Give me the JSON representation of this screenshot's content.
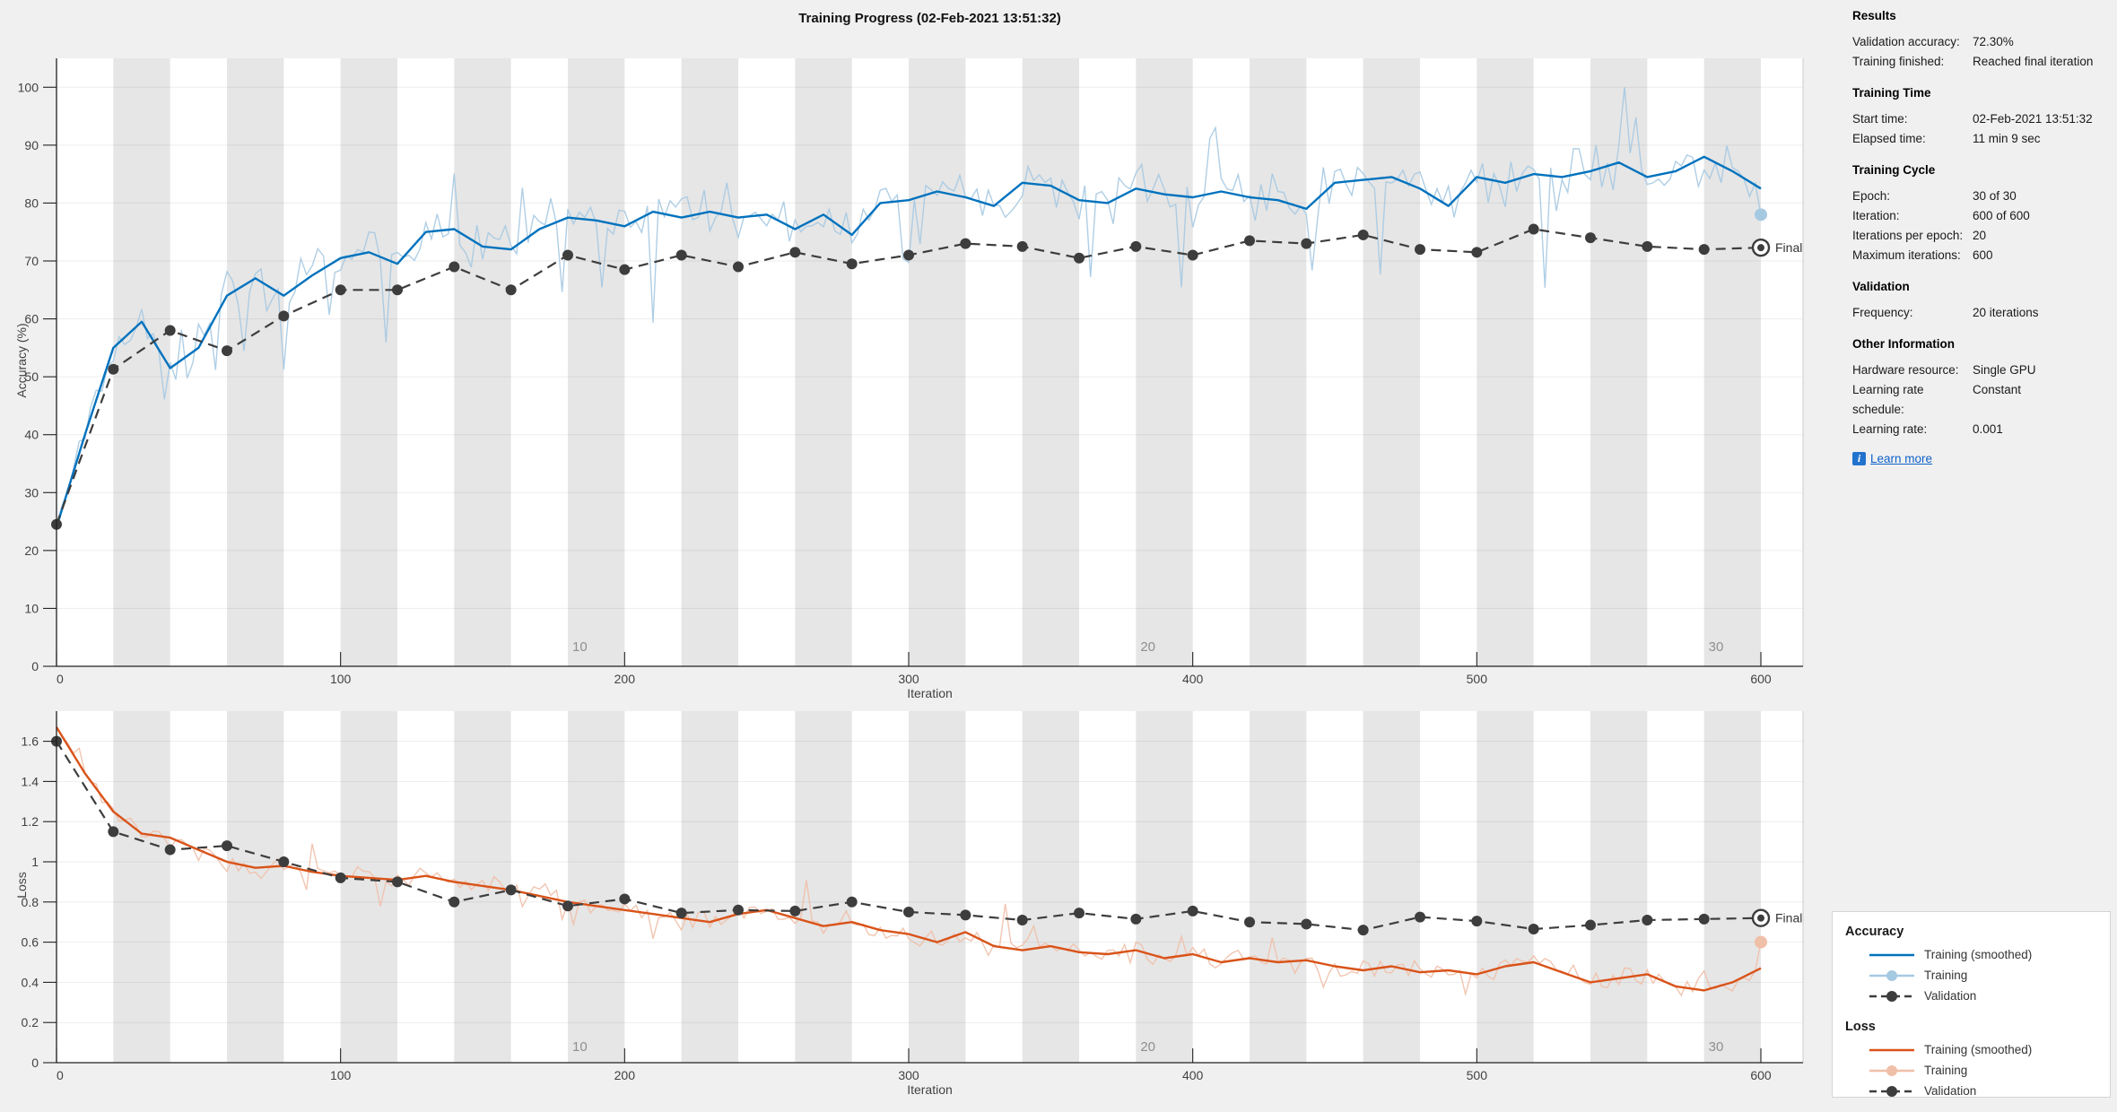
{
  "title": "Training Progress (02-Feb-2021 13:51:32)",
  "colors": {
    "figure_bg": "#f0f0f0",
    "plot_bg": "#ffffff",
    "epoch_band": "#e6e6e6",
    "grid": "rgba(0,0,0,0.07)",
    "axis": "#212121",
    "tick_text": "#424242",
    "epoch_label_text": "#8f8f8f",
    "accuracy_smoothed": "#0072BD",
    "accuracy_raw": "#a6c9e2",
    "loss_smoothed": "#D95319",
    "loss_raw": "#f0bfa8",
    "validation": "#3d3d3d",
    "final_text": "#333333",
    "link": "#0d62c9"
  },
  "panel": {
    "sections": [
      {
        "header": "Results",
        "items": [
          {
            "label": "Validation accuracy:",
            "value": "72.30%"
          },
          {
            "label": "Training finished:",
            "value": "Reached final iteration"
          }
        ]
      },
      {
        "header": "Training Time",
        "items": [
          {
            "label": "Start time:",
            "value": "02-Feb-2021 13:51:32"
          },
          {
            "label": "Elapsed time:",
            "value": "11 min 9 sec"
          }
        ]
      },
      {
        "header": "Training Cycle",
        "items": [
          {
            "label": "Epoch:",
            "value": "30 of 30"
          },
          {
            "label": "Iteration:",
            "value": "600 of 600"
          },
          {
            "label": "Iterations per epoch:",
            "value": "20"
          },
          {
            "label": "Maximum iterations:",
            "value": "600"
          }
        ]
      },
      {
        "header": "Validation",
        "items": [
          {
            "label": "Frequency:",
            "value": "20 iterations"
          }
        ]
      },
      {
        "header": "Other Information",
        "items": [
          {
            "label": "Hardware resource:",
            "value": "Single GPU"
          },
          {
            "label": "Learning rate schedule:",
            "value": "Constant"
          },
          {
            "label": "Learning rate:",
            "value": "0.001"
          }
        ]
      }
    ],
    "learn_more": "Learn more"
  },
  "legend": {
    "groups": [
      {
        "title": "Accuracy",
        "entries": [
          {
            "label": "Training (smoothed)",
            "swatch": "solid-blue"
          },
          {
            "label": "Training",
            "swatch": "raw-blue"
          },
          {
            "label": "Validation",
            "swatch": "dashed-dark"
          }
        ]
      },
      {
        "title": "Loss",
        "entries": [
          {
            "label": "Training (smoothed)",
            "swatch": "solid-orange"
          },
          {
            "label": "Training",
            "swatch": "raw-orange"
          },
          {
            "label": "Validation",
            "swatch": "dashed-dark"
          }
        ]
      }
    ]
  },
  "chart_data": [
    {
      "type": "line",
      "name": "accuracy",
      "ylabel": "Accuracy (%)",
      "xlabel": "Iteration",
      "xlim": [
        0,
        615
      ],
      "ylim": [
        0,
        105
      ],
      "xticks": [
        0,
        100,
        200,
        300,
        400,
        500,
        600
      ],
      "xtick_labels": [
        "0",
        "100",
        "200",
        "300",
        "400",
        "500",
        "600"
      ],
      "yticks": [
        0,
        10,
        20,
        30,
        40,
        50,
        60,
        70,
        80,
        90,
        100
      ],
      "ytick_labels": [
        "0",
        "10",
        "20",
        "30",
        "40",
        "50",
        "60",
        "70",
        "80",
        "90",
        "100"
      ],
      "grid": "horizontal",
      "epoch_bands": {
        "iterations_per_epoch": 20,
        "num_epochs": 30,
        "shaded": "even",
        "labels": [
          {
            "epoch": 10,
            "text": "10"
          },
          {
            "epoch": 20,
            "text": "20"
          },
          {
            "epoch": 30,
            "text": "30"
          }
        ]
      },
      "series": [
        {
          "name": "Training (smoothed)",
          "style": "solid",
          "color_key": "accuracy_smoothed",
          "x_start": 0,
          "x_step": 10,
          "values": [
            24,
            40,
            55,
            59.5,
            51.5,
            55,
            64,
            67,
            64,
            67.5,
            70.5,
            71.5,
            69.5,
            75,
            75.5,
            72.5,
            72,
            75.5,
            77.5,
            77,
            76,
            78.5,
            77.5,
            78.5,
            77.5,
            78,
            75.5,
            78,
            74.5,
            80,
            80.5,
            82,
            81,
            79.5,
            83.5,
            83,
            80.5,
            80,
            82.5,
            81.5,
            81,
            82,
            81,
            80.5,
            79,
            83.5,
            84,
            84.5,
            82.5,
            79.5,
            84.5,
            83.5,
            85,
            84.5,
            85.5,
            87,
            84.5,
            85.5,
            88,
            85.5,
            82.5
          ]
        },
        {
          "name": "Training",
          "style": "raw-noisy",
          "color_key": "accuracy_raw",
          "base": "Training (smoothed)",
          "x_step": 2,
          "noise_amp": 5.5,
          "noise_seed": 12345,
          "spike_dir": -1,
          "end_value": 78,
          "end_marker": true
        },
        {
          "name": "Validation",
          "style": "dashed-markers",
          "color_key": "validation",
          "x_start": 0,
          "x_step": 20,
          "values": [
            24.5,
            51.3,
            58,
            54.5,
            60.5,
            65,
            65,
            69,
            65,
            71,
            68.5,
            71,
            69,
            71.5,
            69.5,
            71,
            73,
            72.5,
            70.5,
            72.5,
            71,
            73.5,
            73,
            74.5,
            72,
            71.5,
            75.5,
            74,
            72.5,
            72,
            72.3
          ],
          "final_label": "Final",
          "final_value": 72.3
        }
      ]
    },
    {
      "type": "line",
      "name": "loss",
      "ylabel": "Loss",
      "xlabel": "Iteration",
      "xlim": [
        0,
        615
      ],
      "ylim": [
        0,
        1.75
      ],
      "xticks": [
        0,
        100,
        200,
        300,
        400,
        500,
        600
      ],
      "xtick_labels": [
        "0",
        "100",
        "200",
        "300",
        "400",
        "500",
        "600"
      ],
      "yticks": [
        0,
        0.2,
        0.4,
        0.6,
        0.8,
        1,
        1.2,
        1.4,
        1.6
      ],
      "ytick_labels": [
        "0",
        "0.2",
        "0.4",
        "0.6",
        "0.8",
        "1",
        "1.2",
        "1.4",
        "1.6"
      ],
      "grid": "horizontal",
      "epoch_bands": {
        "iterations_per_epoch": 20,
        "num_epochs": 30,
        "shaded": "even",
        "labels": [
          {
            "epoch": 10,
            "text": "10"
          },
          {
            "epoch": 20,
            "text": "20"
          },
          {
            "epoch": 30,
            "text": "30"
          }
        ]
      },
      "series": [
        {
          "name": "Training (smoothed)",
          "style": "solid",
          "color_key": "loss_smoothed",
          "x_start": 0,
          "x_step": 10,
          "values": [
            1.67,
            1.44,
            1.25,
            1.14,
            1.12,
            1.06,
            1.0,
            0.97,
            0.98,
            0.95,
            0.93,
            0.92,
            0.91,
            0.93,
            0.9,
            0.88,
            0.86,
            0.83,
            0.8,
            0.78,
            0.76,
            0.74,
            0.72,
            0.7,
            0.74,
            0.76,
            0.72,
            0.68,
            0.7,
            0.66,
            0.64,
            0.6,
            0.65,
            0.58,
            0.56,
            0.58,
            0.55,
            0.54,
            0.56,
            0.52,
            0.54,
            0.5,
            0.52,
            0.5,
            0.51,
            0.48,
            0.46,
            0.48,
            0.45,
            0.46,
            0.44,
            0.48,
            0.5,
            0.45,
            0.4,
            0.42,
            0.44,
            0.38,
            0.36,
            0.4,
            0.47
          ]
        },
        {
          "name": "Training",
          "style": "raw-noisy",
          "color_key": "loss_raw",
          "base": "Training (smoothed)",
          "x_step": 2,
          "noise_amp": 0.07,
          "noise_seed": 54321,
          "spike_dir": 1,
          "end_value": 0.6,
          "end_marker": true
        },
        {
          "name": "Validation",
          "style": "dashed-markers",
          "color_key": "validation",
          "x_start": 0,
          "x_step": 20,
          "values": [
            1.6,
            1.15,
            1.06,
            1.08,
            1.0,
            0.92,
            0.9,
            0.8,
            0.86,
            0.78,
            0.815,
            0.745,
            0.76,
            0.755,
            0.8,
            0.75,
            0.735,
            0.71,
            0.745,
            0.715,
            0.755,
            0.7,
            0.69,
            0.66,
            0.725,
            0.705,
            0.665,
            0.685,
            0.71,
            0.715,
            0.72
          ],
          "final_label": "Final",
          "final_value": 0.72
        }
      ]
    }
  ]
}
